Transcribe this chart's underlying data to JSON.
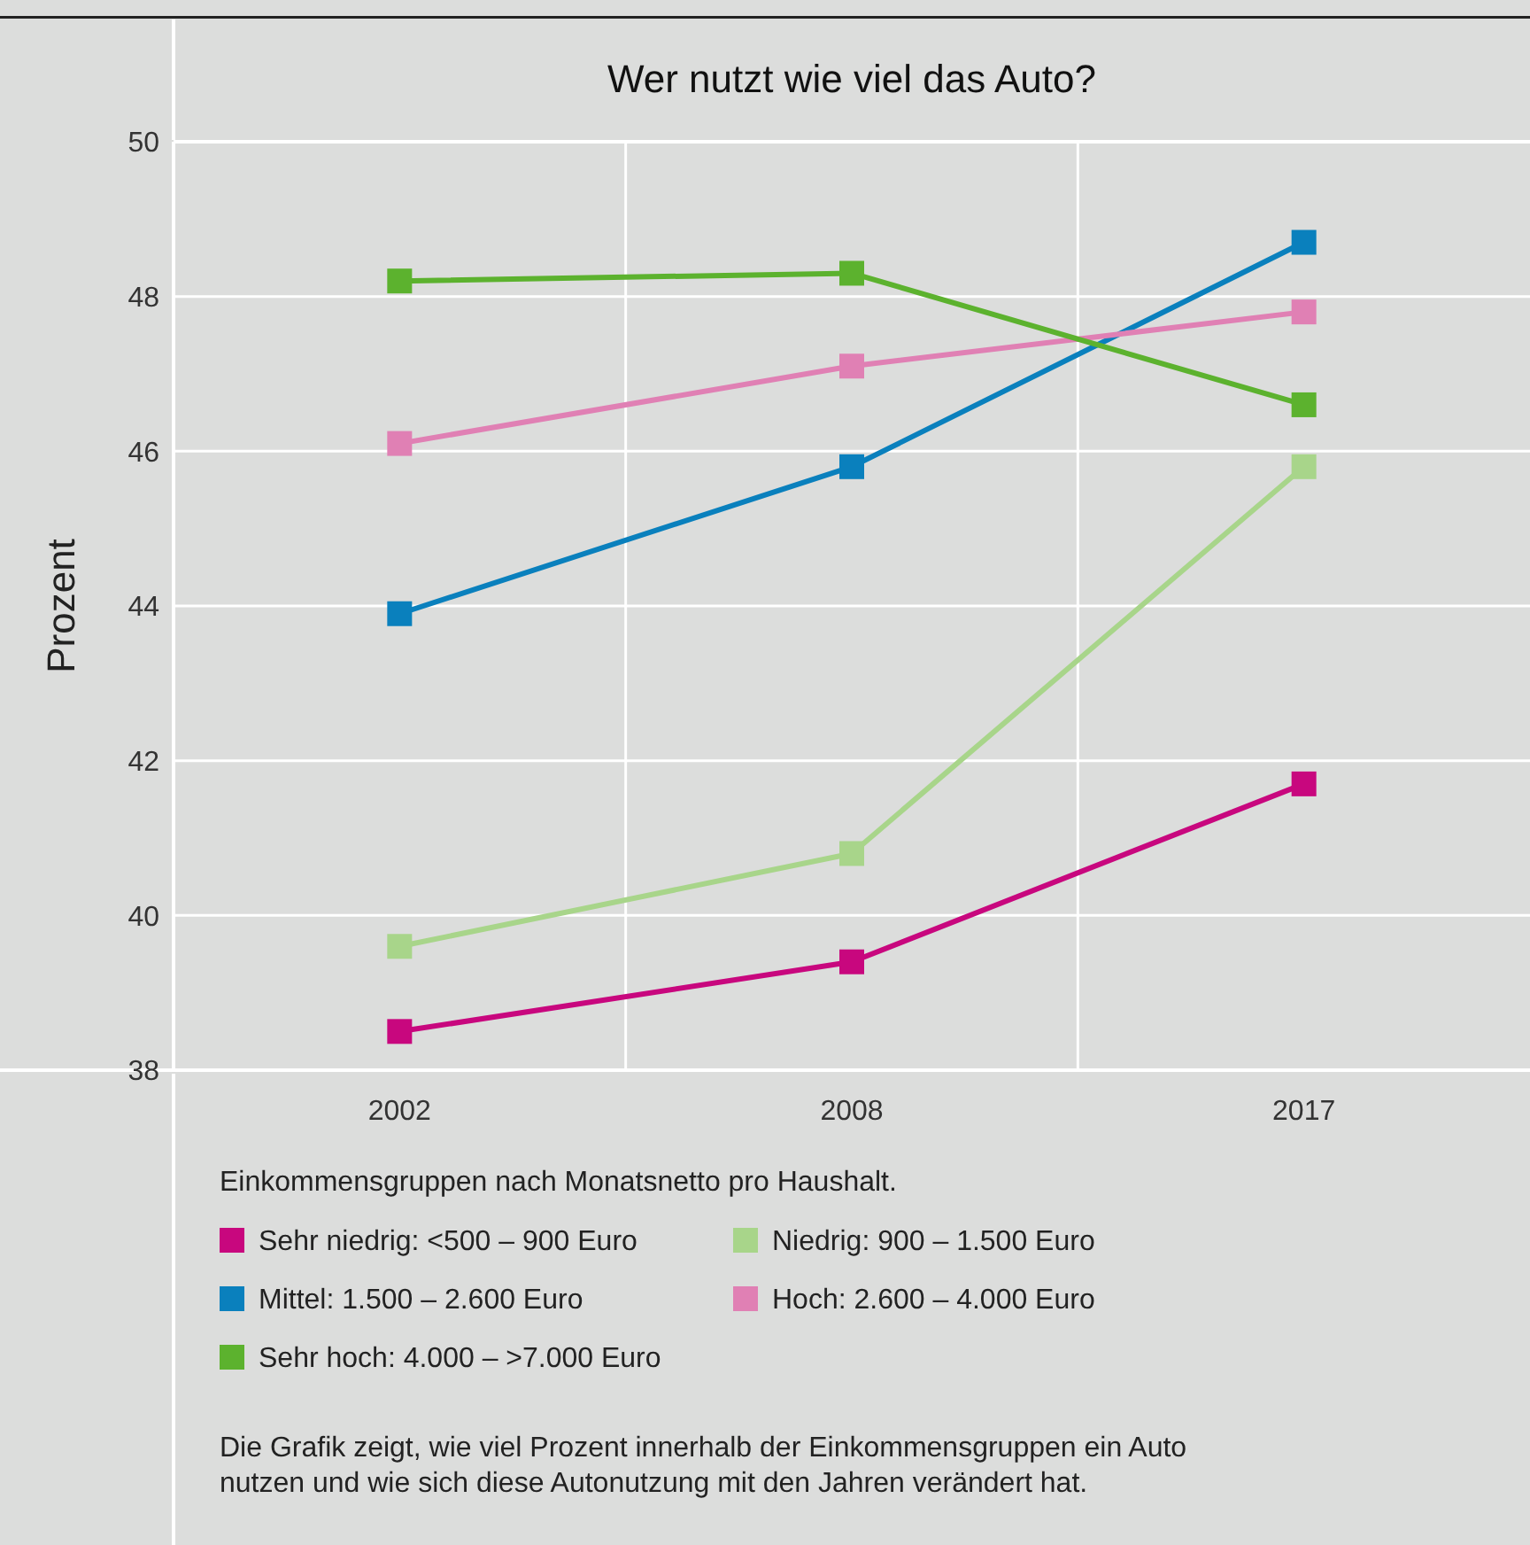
{
  "chart_data": {
    "type": "line",
    "title": "Wer nutzt wie viel das Auto?",
    "ylabel": "Prozent",
    "categories": [
      "2002",
      "2008",
      "2017"
    ],
    "series": [
      {
        "name": "Sehr niedrig: <500 – 900 Euro",
        "color": "#c8077e",
        "values": [
          38.5,
          39.4,
          41.7
        ]
      },
      {
        "name": "Niedrig: 900 – 1.500 Euro",
        "color": "#a8d58a",
        "values": [
          39.6,
          40.8,
          45.8
        ]
      },
      {
        "name": "Mittel: 1.500 – 2.600 Euro",
        "color": "#0a80bd",
        "values": [
          43.9,
          45.8,
          48.7
        ]
      },
      {
        "name": "Hoch: 2.600 – 4.000 Euro",
        "color": "#e080b4",
        "values": [
          46.1,
          47.1,
          47.8
        ]
      },
      {
        "name": "Sehr hoch: 4.000 – >7.000 Euro",
        "color": "#5cb22e",
        "values": [
          48.2,
          48.3,
          46.6
        ]
      }
    ],
    "ylim": [
      38,
      50
    ],
    "yticks": [
      38,
      40,
      42,
      44,
      46,
      48,
      50
    ],
    "grid": true,
    "marker": "square",
    "line_style": "solid",
    "legend": "bottom",
    "legend_title": "Einkommensgruppen nach Monatsnetto pro Haushalt.",
    "annotations": [
      "Die Grafik zeigt, wie viel Prozent innerhalb der Einkommensgruppen ein Auto nutzen und wie sich diese Autonutzung mit den Jahren verändert hat."
    ]
  }
}
